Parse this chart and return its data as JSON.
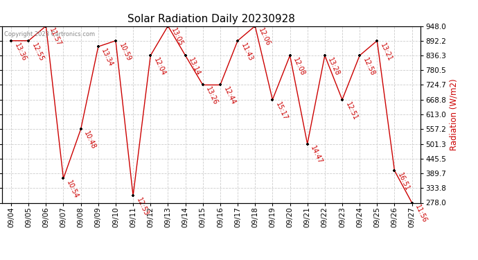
{
  "title": "Solar Radiation Daily 20230928",
  "ylabel": "Radiation (W/m2)",
  "copyright": "Copyright 2023 Cartronics.com",
  "background_color": "#ffffff",
  "line_color": "#cc0000",
  "dot_color": "#000000",
  "label_color": "#cc0000",
  "grid_color": "#cccccc",
  "ymin": 278.0,
  "ymax": 948.0,
  "yticks": [
    278.0,
    333.8,
    389.7,
    445.5,
    501.3,
    557.2,
    613.0,
    668.8,
    724.7,
    780.5,
    836.3,
    892.2,
    948.0
  ],
  "dates": [
    "09/04",
    "09/05",
    "09/06",
    "09/07",
    "09/08",
    "09/09",
    "09/10",
    "09/11",
    "09/12",
    "09/13",
    "09/14",
    "09/15",
    "09/16",
    "09/17",
    "09/18",
    "09/19",
    "09/20",
    "09/21",
    "09/22",
    "09/23",
    "09/24",
    "09/25",
    "09/26",
    "09/27"
  ],
  "values": [
    892.2,
    892.2,
    948.0,
    370.0,
    557.2,
    870.0,
    892.2,
    305.0,
    836.3,
    948.0,
    836.3,
    724.7,
    724.7,
    892.2,
    948.0,
    668.8,
    836.3,
    501.3,
    836.3,
    668.8,
    836.3,
    892.2,
    400.0,
    278.0
  ],
  "labels": [
    "13:36",
    "12:55",
    "11:57",
    "10:54",
    "10:48",
    "13:34",
    "10:59",
    "12:53",
    "12:04",
    "13:05",
    "13:14",
    "13:26",
    "12:44",
    "11:43",
    "12:06",
    "15:17",
    "12:08",
    "14:47",
    "13:28",
    "12:51",
    "12:58",
    "13:21",
    "16:51",
    "11:56"
  ],
  "title_fontsize": 11,
  "label_fontsize": 7,
  "tick_fontsize": 7.5,
  "ylabel_fontsize": 8.5
}
